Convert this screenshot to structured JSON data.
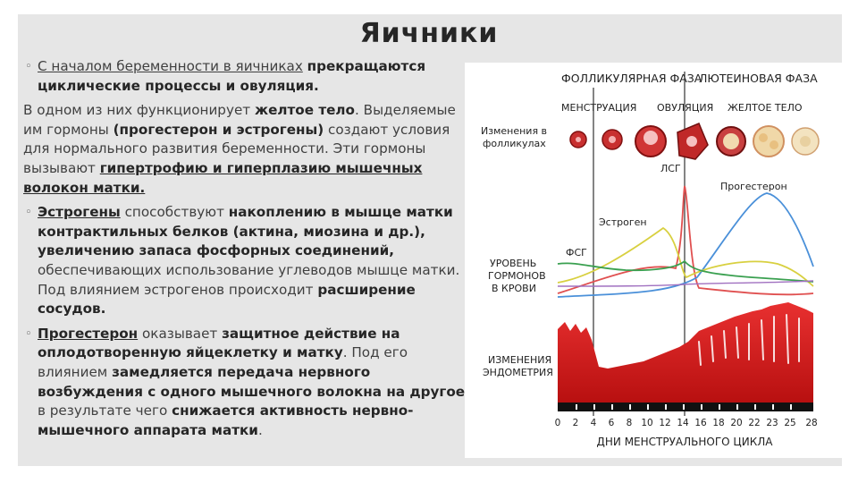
{
  "slide_title": "Яичники",
  "b1": {
    "s1": "С началом беременности в яичниках",
    "s2": "прекращаются циклические процессы и овуляция."
  },
  "p2": {
    "s1": "В одном из них функционирует",
    "s2": "желтое тело",
    "s3": ".",
    "s4": "Выделяемые им гормоны",
    "s5": "(прогестерон и эстрогены)",
    "s6": "создают условия для нормального развития беременности. Эти гормоны вызывают",
    "s7": "гипертрофию и гиперплазию мышечных волокон матки."
  },
  "b3": {
    "s1": "Эстрогены",
    "s2": "способствуют",
    "s3": "накоплению в мышце матки контрактильных белков (актина, миозина и др.), увеличению запаса фосфорных соединений,",
    "s4": "обеспечивающих использование углеводов мышце матки. Под влиянием эстрогенов происходит",
    "s5": "расширение сосудов."
  },
  "b4": {
    "s1": "Прогестерон",
    "s2": "оказывает",
    "s3": "защитное действие на оплодотворенную яйцеклетку и матку",
    "s4": ". Под его влиянием",
    "s5": "замедляется передача нервного возбуждения с одного мышечного волокна на другое",
    "s6": ", в результате чего",
    "s7": "снижается активность нервно-мышечного аппарата матки",
    "s8": "."
  },
  "diagram": {
    "phase_follicular": "ФОЛЛИКУЛЯРНАЯ ФАЗА",
    "phase_luteal": "ЛЮТЕИНОВАЯ ФАЗА",
    "stage_menstruation": "МЕНСТРУАЦИЯ",
    "stage_ovulation": "ОВУЛЯЦИЯ",
    "stage_corpus": "ЖЕЛТОЕ ТЕЛО",
    "row_follicles_1": "Изменения в",
    "row_follicles_2": "фолликулах",
    "row_hormones_1": "УРОВЕНЬ",
    "row_hormones_2": "ГОРМОНОВ",
    "row_hormones_3": "В КРОВИ",
    "row_endometrium_1": "ИЗМЕНЕНИЯ",
    "row_endometrium_2": "ЭНДОМЕТРИЯ",
    "label_lsg": "ЛСГ",
    "label_progesterone": "Прогестерон",
    "label_estrogen": "Эстроген",
    "label_fsg": "ФСГ",
    "days": [
      "0",
      "2",
      "4",
      "6",
      "8",
      "10",
      "12",
      "14",
      "16",
      "18",
      "20",
      "22",
      "23",
      "25",
      "28"
    ],
    "x_axis_title": "ДНИ МЕНСТРУАЛЬНОГО ЦИКЛА",
    "colors": {
      "lsg": "#e05050",
      "progesterone": "#4a90d9",
      "estrogen": "#d8d040",
      "fsg": "#3aa050",
      "extra": "#a070c0",
      "endometrium": "#d42020"
    }
  }
}
